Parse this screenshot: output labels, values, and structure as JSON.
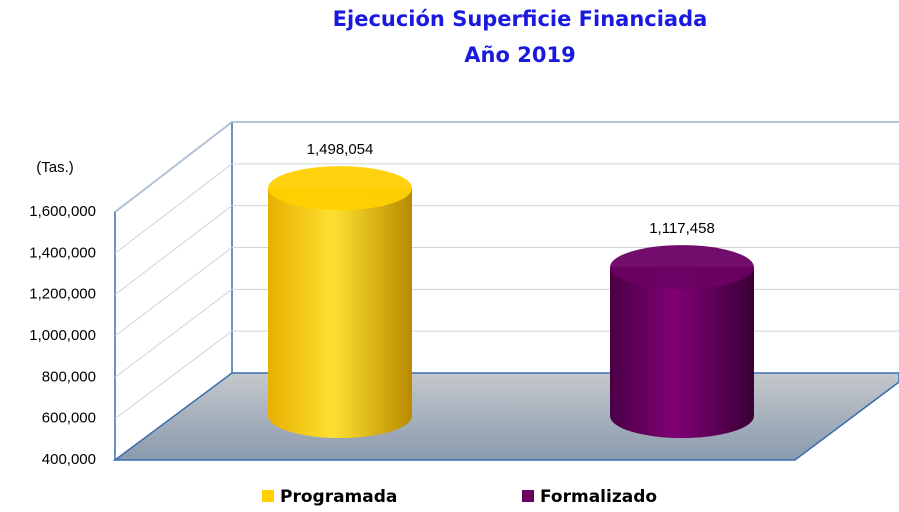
{
  "chart_data": {
    "type": "bar3d",
    "title": "Ejecución Superficie Financiada",
    "subtitle": "Año 2019",
    "y_label": "(Tas.)",
    "categories": [
      "Programada",
      "Formalizado"
    ],
    "values": [
      1498054,
      1117458
    ],
    "value_labels": [
      "1,498,054",
      "1,117,458"
    ],
    "colors": [
      "#ffd000",
      "#6b0063"
    ],
    "ylim": [
      400000,
      1600000
    ],
    "yticks": [
      {
        "value": 400000,
        "label": "400,000"
      },
      {
        "value": 600000,
        "label": "600,000"
      },
      {
        "value": 800000,
        "label": "800,000"
      },
      {
        "value": 1000000,
        "label": "1,000,000"
      },
      {
        "value": 1200000,
        "label": "1,200,000"
      },
      {
        "value": 1400000,
        "label": "1,400,000"
      },
      {
        "value": 1600000,
        "label": "1,600,000"
      }
    ],
    "grid": true,
    "legend": "bottom"
  }
}
